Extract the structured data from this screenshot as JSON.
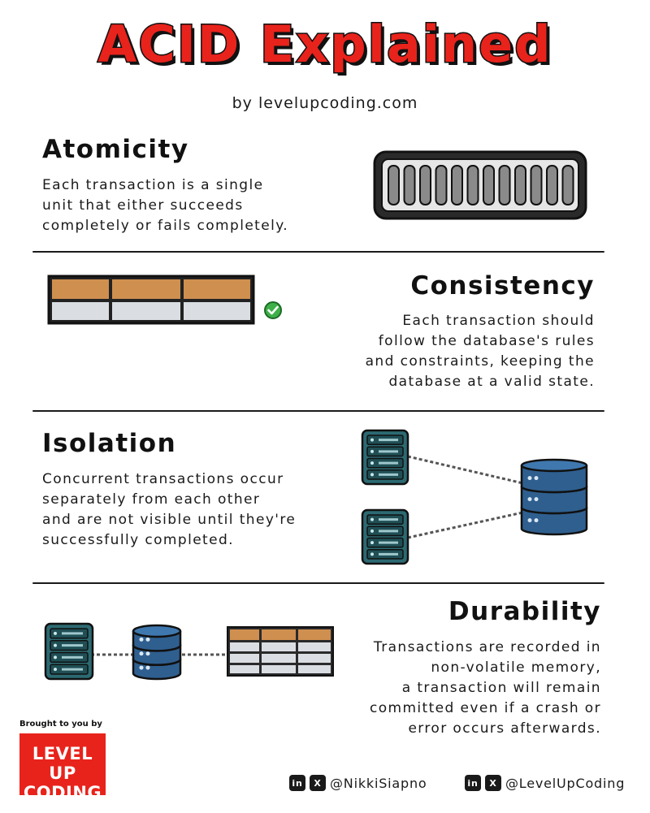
{
  "header": {
    "title": "ACID Explained",
    "byline": "by levelupcoding.com"
  },
  "sections": {
    "atomicity": {
      "heading": "Atomicity",
      "lines": [
        "Each transaction is a single",
        "unit that either succeeds",
        "completely or fails completely."
      ]
    },
    "consistency": {
      "heading": "Consistency",
      "lines": [
        "Each transaction should",
        "follow the database's rules",
        "and constraints, keeping the",
        "database at a valid state."
      ]
    },
    "isolation": {
      "heading": "Isolation",
      "lines": [
        "Concurrent transactions occur",
        "separately from each other",
        "and are not visible until they're",
        "successfully completed."
      ]
    },
    "durability": {
      "heading": "Durability",
      "lines": [
        "Transactions are recorded in",
        "non-volatile memory,",
        "a transaction will remain",
        "committed even if a crash or",
        "error occurs afterwards."
      ]
    }
  },
  "footer": {
    "brought_by": "Brought to you by",
    "brand_lines": [
      "LEVEL UP",
      "CODING"
    ],
    "socials": [
      {
        "linkedin_icon": "in",
        "x_icon": "X",
        "handle": "@NikkiSiapno"
      },
      {
        "linkedin_icon": "in",
        "x_icon": "X",
        "handle": "@LevelUpCoding"
      }
    ]
  },
  "colors": {
    "title_red": "#e8231c",
    "table_header_orange": "#cf8f4f",
    "table_row_gray": "#dadde2",
    "server_teal": "#2c6a72",
    "database_blue": "#2f5f8f",
    "check_green": "#3fb049"
  }
}
